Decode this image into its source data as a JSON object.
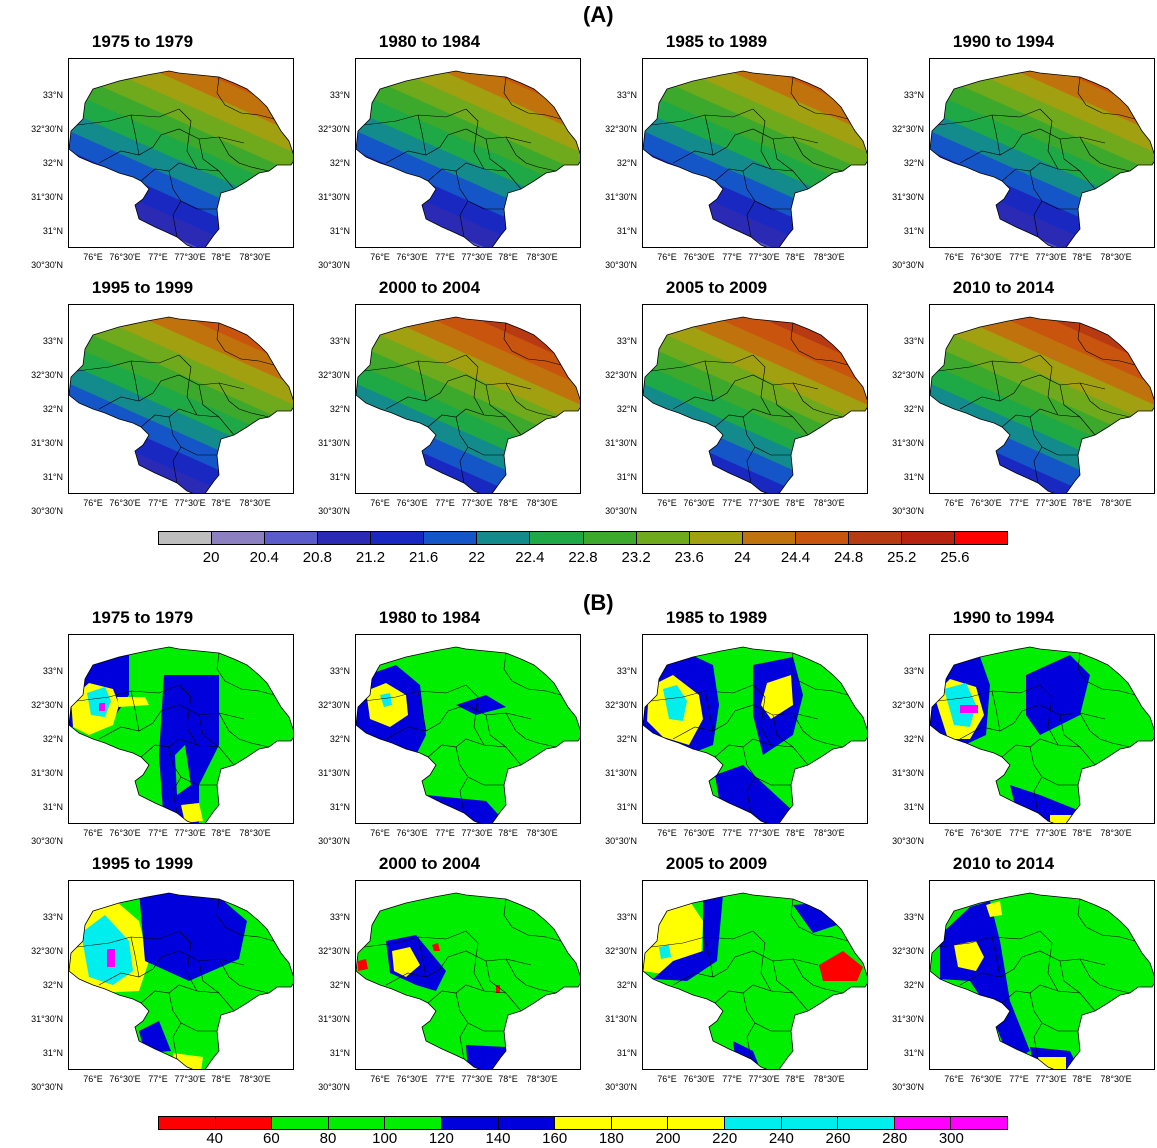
{
  "section_a": {
    "label": "(A)"
  },
  "section_b": {
    "label": "(B)"
  },
  "lat_ticks": [
    "33°N",
    "32°30'N",
    "32°N",
    "31°30'N",
    "31°N",
    "30°30'N"
  ],
  "lon_ticks": [
    "76°E",
    "76°30'E",
    "77°E",
    "77°30'E",
    "78°E",
    "78°30'E"
  ],
  "periods": [
    "1975 to 1979",
    "1980 to 1984",
    "1985 to 1989",
    "1990 to 1994",
    "1995 to 1999",
    "2000 to 2004",
    "2005 to 2009",
    "2010 to 2014"
  ],
  "colorbar_a": {
    "colors": [
      "#bebebe",
      "#8c80c0",
      "#5a5ccc",
      "#2a2ab4",
      "#1a28c2",
      "#1456c8",
      "#138a8c",
      "#1ea846",
      "#3ca82c",
      "#6eaa1c",
      "#a0a010",
      "#c0720c",
      "#c8540e",
      "#b83a12",
      "#b82210",
      "#ff0000"
    ],
    "labels": [
      "20",
      "20.4",
      "20.8",
      "21.2",
      "21.6",
      "22",
      "22.4",
      "22.8",
      "23.2",
      "23.6",
      "24",
      "24.4",
      "24.8",
      "25.2",
      "25.6"
    ]
  },
  "colorbar_b": {
    "colors": [
      "#ff0000",
      "#ff0000",
      "#00ee00",
      "#00ee00",
      "#00ee00",
      "#0000dd",
      "#0000dd",
      "#ffff00",
      "#ffff00",
      "#ffff00",
      "#00eeee",
      "#00eeee",
      "#00eeee",
      "#ff00ff",
      "#ff00ff"
    ],
    "labels": [
      "40",
      "60",
      "80",
      "100",
      "120",
      "140",
      "160",
      "180",
      "200",
      "220",
      "240",
      "260",
      "280",
      "300"
    ]
  }
}
